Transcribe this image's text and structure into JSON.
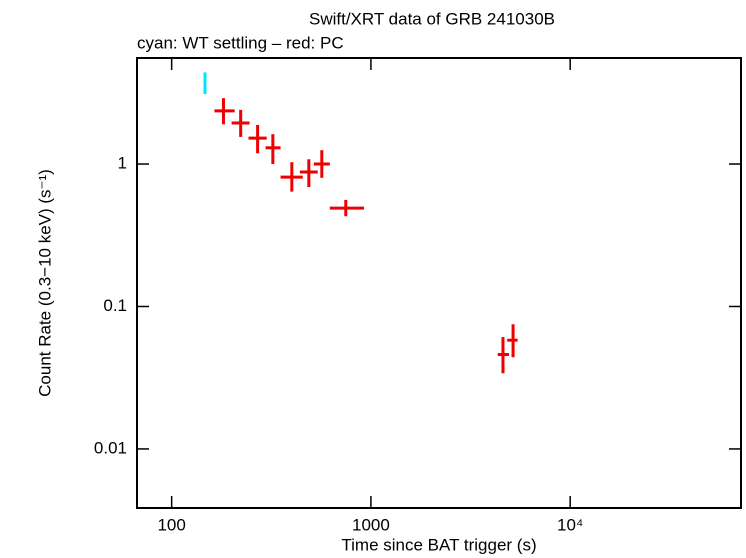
{
  "chart_data": {
    "type": "scatter",
    "title": "Swift/XRT data of GRB 241030B",
    "subtitle": "cyan: WT settling – red: PC",
    "x_label": "Time since BAT trigger (s)",
    "y_label": "Count Rate (0.3−10 keV) (s⁻¹)",
    "x_log": true,
    "y_log": true,
    "xlim": [
      67,
      72000
    ],
    "ylim": [
      0.00385,
      5.55
    ],
    "xticks": [
      100,
      1000,
      {
        "value": 10000,
        "label": "10⁴"
      }
    ],
    "yticks": [
      0.01,
      0.1,
      1
    ],
    "series": [
      {
        "name": "WT settling",
        "color": "#00e5ff",
        "x": [
          147
        ],
        "x_lower": [
          145
        ],
        "x_upper": [
          149
        ],
        "values": [
          3.7
        ],
        "y_lower": [
          3.1
        ],
        "y_upper": [
          4.4
        ]
      },
      {
        "name": "PC",
        "color": "#ee0000",
        "x": [
          182,
          222,
          270,
          322,
          401,
          488,
          567,
          748,
          4600,
          5170
        ],
        "x_lower": [
          164,
          200,
          243,
          296,
          352,
          440,
          517,
          622,
          4330,
          4830
        ],
        "x_upper": [
          207,
          246,
          300,
          352,
          455,
          541,
          622,
          924,
          4930,
          5450
        ],
        "values": [
          2.36,
          1.94,
          1.52,
          1.3,
          0.81,
          0.88,
          1.0,
          0.49,
          0.046,
          0.058
        ],
        "y_lower": [
          1.9,
          1.55,
          1.19,
          1.0,
          0.64,
          0.69,
          0.8,
          0.43,
          0.034,
          0.044
        ],
        "y_upper": [
          2.9,
          2.4,
          1.88,
          1.62,
          1.03,
          1.08,
          1.25,
          0.56,
          0.061,
          0.075
        ]
      }
    ]
  }
}
